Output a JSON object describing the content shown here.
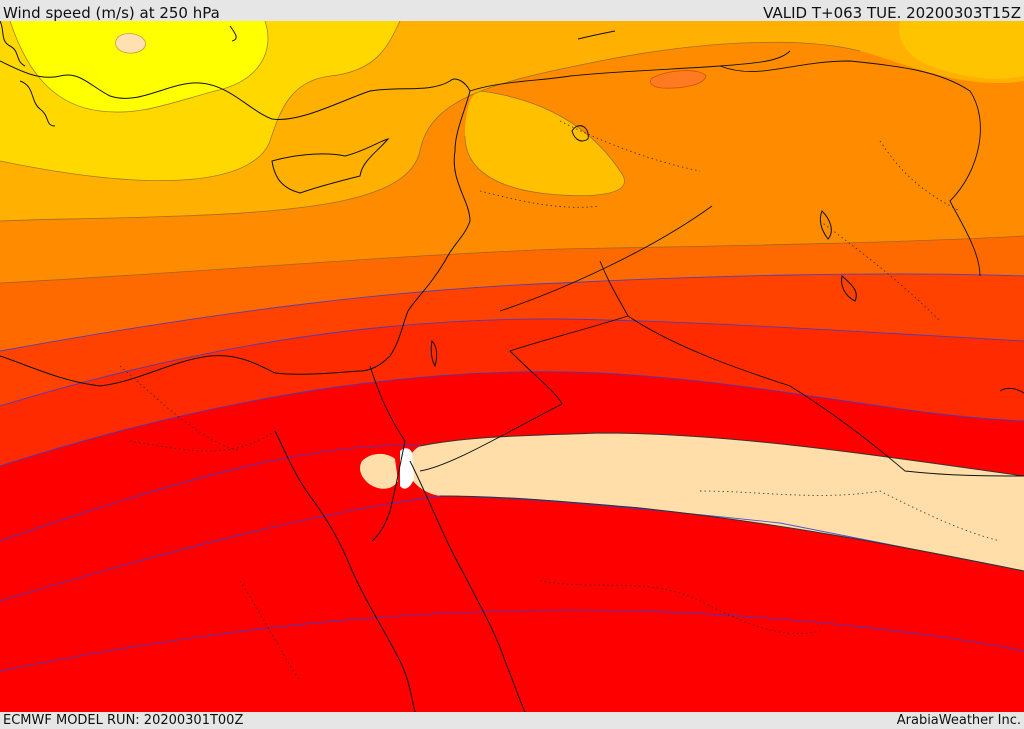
{
  "header": {
    "title": "Wind speed (m/s) at 250 hPa",
    "valid": "VALID T+063 TUE. 20200303T15Z"
  },
  "footer": {
    "model_run": "ECMWF MODEL RUN: 20200301T00Z",
    "credit": "ArabiaWeather Inc."
  }
}
